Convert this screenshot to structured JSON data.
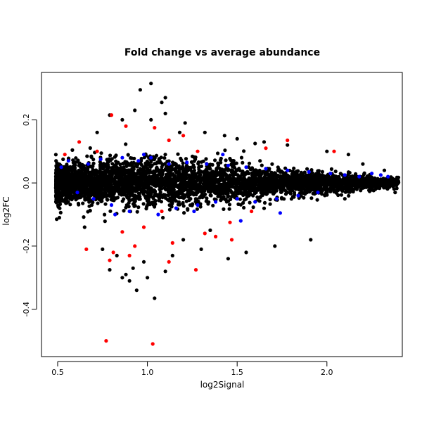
{
  "chart_data": {
    "type": "scatter",
    "title": "Fold change vs average abundance",
    "xlabel": "log2Signal",
    "ylabel": "log2FC",
    "xlim": [
      0.41,
      2.42
    ],
    "ylim": [
      -0.55,
      0.35
    ],
    "x_ticks": [
      0.5,
      1.0,
      1.5,
      2.0
    ],
    "x_tick_labels": [
      "0.5",
      "1.0",
      "1.5",
      "2.0"
    ],
    "y_ticks": [
      -0.4,
      -0.2,
      0.0,
      0.2
    ],
    "y_tick_labels": [
      "-0.4",
      "-0.2",
      "0.0",
      "0.2"
    ],
    "grid": false,
    "legend": "none",
    "colors": {
      "black": "#000000",
      "blue": "#0000ff",
      "red": "#ff0000"
    },
    "series": [
      {
        "color": "#000000",
        "density_cloud": {
          "x_range": [
            0.49,
            2.4
          ],
          "y_halfwidth_at": {
            "0.5": 0.06,
            "1.0": 0.07,
            "1.5": 0.05,
            "2.0": 0.03,
            "2.3": 0.015
          }
        },
        "outliers": [
          [
            1.02,
            0.315
          ],
          [
            0.96,
            0.295
          ],
          [
            1.1,
            0.27
          ],
          [
            1.08,
            0.255
          ],
          [
            0.93,
            0.23
          ],
          [
            0.79,
            0.215
          ],
          [
            0.86,
            0.2
          ],
          [
            1.02,
            0.2
          ],
          [
            1.1,
            0.22
          ],
          [
            1.21,
            0.19
          ],
          [
            0.72,
            0.16
          ],
          [
            1.18,
            0.16
          ],
          [
            1.32,
            0.16
          ],
          [
            1.43,
            0.15
          ],
          [
            1.5,
            0.14
          ],
          [
            1.65,
            0.13
          ],
          [
            1.78,
            0.12
          ],
          [
            1.6,
            0.125
          ],
          [
            2.0,
            0.1
          ],
          [
            2.12,
            0.09
          ],
          [
            2.2,
            0.06
          ],
          [
            2.32,
            0.04
          ],
          [
            2.38,
            -0.03
          ],
          [
            2.1,
            -0.05
          ],
          [
            1.91,
            -0.18
          ],
          [
            1.71,
            -0.2
          ],
          [
            1.55,
            -0.22
          ],
          [
            1.45,
            -0.24
          ],
          [
            1.3,
            -0.21
          ],
          [
            1.14,
            -0.23
          ],
          [
            0.98,
            -0.25
          ],
          [
            0.92,
            -0.27
          ],
          [
            0.88,
            -0.29
          ],
          [
            0.86,
            -0.3
          ],
          [
            0.9,
            -0.31
          ],
          [
            0.94,
            -0.34
          ],
          [
            1.0,
            -0.3
          ],
          [
            1.04,
            -0.365
          ],
          [
            1.1,
            -0.28
          ],
          [
            0.79,
            -0.275
          ],
          [
            0.83,
            -0.23
          ],
          [
            0.75,
            -0.21
          ],
          [
            1.2,
            -0.18
          ],
          [
            1.35,
            -0.15
          ],
          [
            0.65,
            -0.14
          ]
        ]
      },
      {
        "color": "#0000ff",
        "points": [
          [
            0.52,
            0.05
          ],
          [
            0.56,
            0.07
          ],
          [
            0.61,
            -0.03
          ],
          [
            0.67,
            0.06
          ],
          [
            0.7,
            -0.05
          ],
          [
            0.74,
            0.075
          ],
          [
            0.8,
            -0.07
          ],
          [
            0.86,
            0.08
          ],
          [
            0.9,
            -0.09
          ],
          [
            0.95,
            0.07
          ],
          [
            1.02,
            0.08
          ],
          [
            1.06,
            -0.1
          ],
          [
            1.12,
            0.06
          ],
          [
            1.16,
            -0.08
          ],
          [
            1.22,
            0.065
          ],
          [
            1.28,
            -0.07
          ],
          [
            1.33,
            0.06
          ],
          [
            1.38,
            -0.06
          ],
          [
            1.45,
            0.055
          ],
          [
            1.5,
            -0.05
          ],
          [
            1.55,
            0.05
          ],
          [
            1.6,
            -0.06
          ],
          [
            1.66,
            0.045
          ],
          [
            1.72,
            -0.05
          ],
          [
            1.78,
            0.04
          ],
          [
            1.84,
            -0.04
          ],
          [
            1.9,
            0.035
          ],
          [
            1.95,
            -0.03
          ],
          [
            2.02,
            0.03
          ],
          [
            2.1,
            0.025
          ],
          [
            2.18,
            0.02
          ],
          [
            2.25,
            0.03
          ],
          [
            2.3,
            0.025
          ],
          [
            2.34,
            0.02
          ],
          [
            1.52,
            -0.12
          ],
          [
            1.26,
            -0.09
          ],
          [
            0.82,
            -0.1
          ],
          [
            1.42,
            0.09
          ],
          [
            0.98,
            0.09
          ],
          [
            1.74,
            -0.095
          ]
        ]
      },
      {
        "color": "#ff0000",
        "points": [
          [
            0.77,
            -0.5
          ],
          [
            1.03,
            -0.51
          ],
          [
            0.66,
            -0.21
          ],
          [
            0.79,
            -0.245
          ],
          [
            0.81,
            -0.22
          ],
          [
            1.27,
            -0.275
          ],
          [
            1.12,
            -0.25
          ],
          [
            0.9,
            -0.23
          ],
          [
            0.86,
            -0.155
          ],
          [
            1.14,
            -0.19
          ],
          [
            1.38,
            -0.17
          ],
          [
            1.46,
            -0.125
          ],
          [
            1.32,
            -0.16
          ],
          [
            0.98,
            -0.14
          ],
          [
            0.8,
            0.215
          ],
          [
            1.04,
            0.175
          ],
          [
            1.2,
            0.15
          ],
          [
            1.12,
            0.135
          ],
          [
            1.66,
            0.11
          ],
          [
            1.78,
            0.135
          ],
          [
            2.04,
            0.1
          ],
          [
            0.54,
            0.09
          ],
          [
            0.62,
            0.13
          ],
          [
            0.88,
            0.18
          ],
          [
            1.28,
            0.1
          ],
          [
            1.58,
            -0.09
          ],
          [
            0.72,
            0.1
          ],
          [
            1.08,
            -0.09
          ],
          [
            1.47,
            -0.18
          ],
          [
            0.93,
            -0.2
          ]
        ]
      }
    ]
  }
}
